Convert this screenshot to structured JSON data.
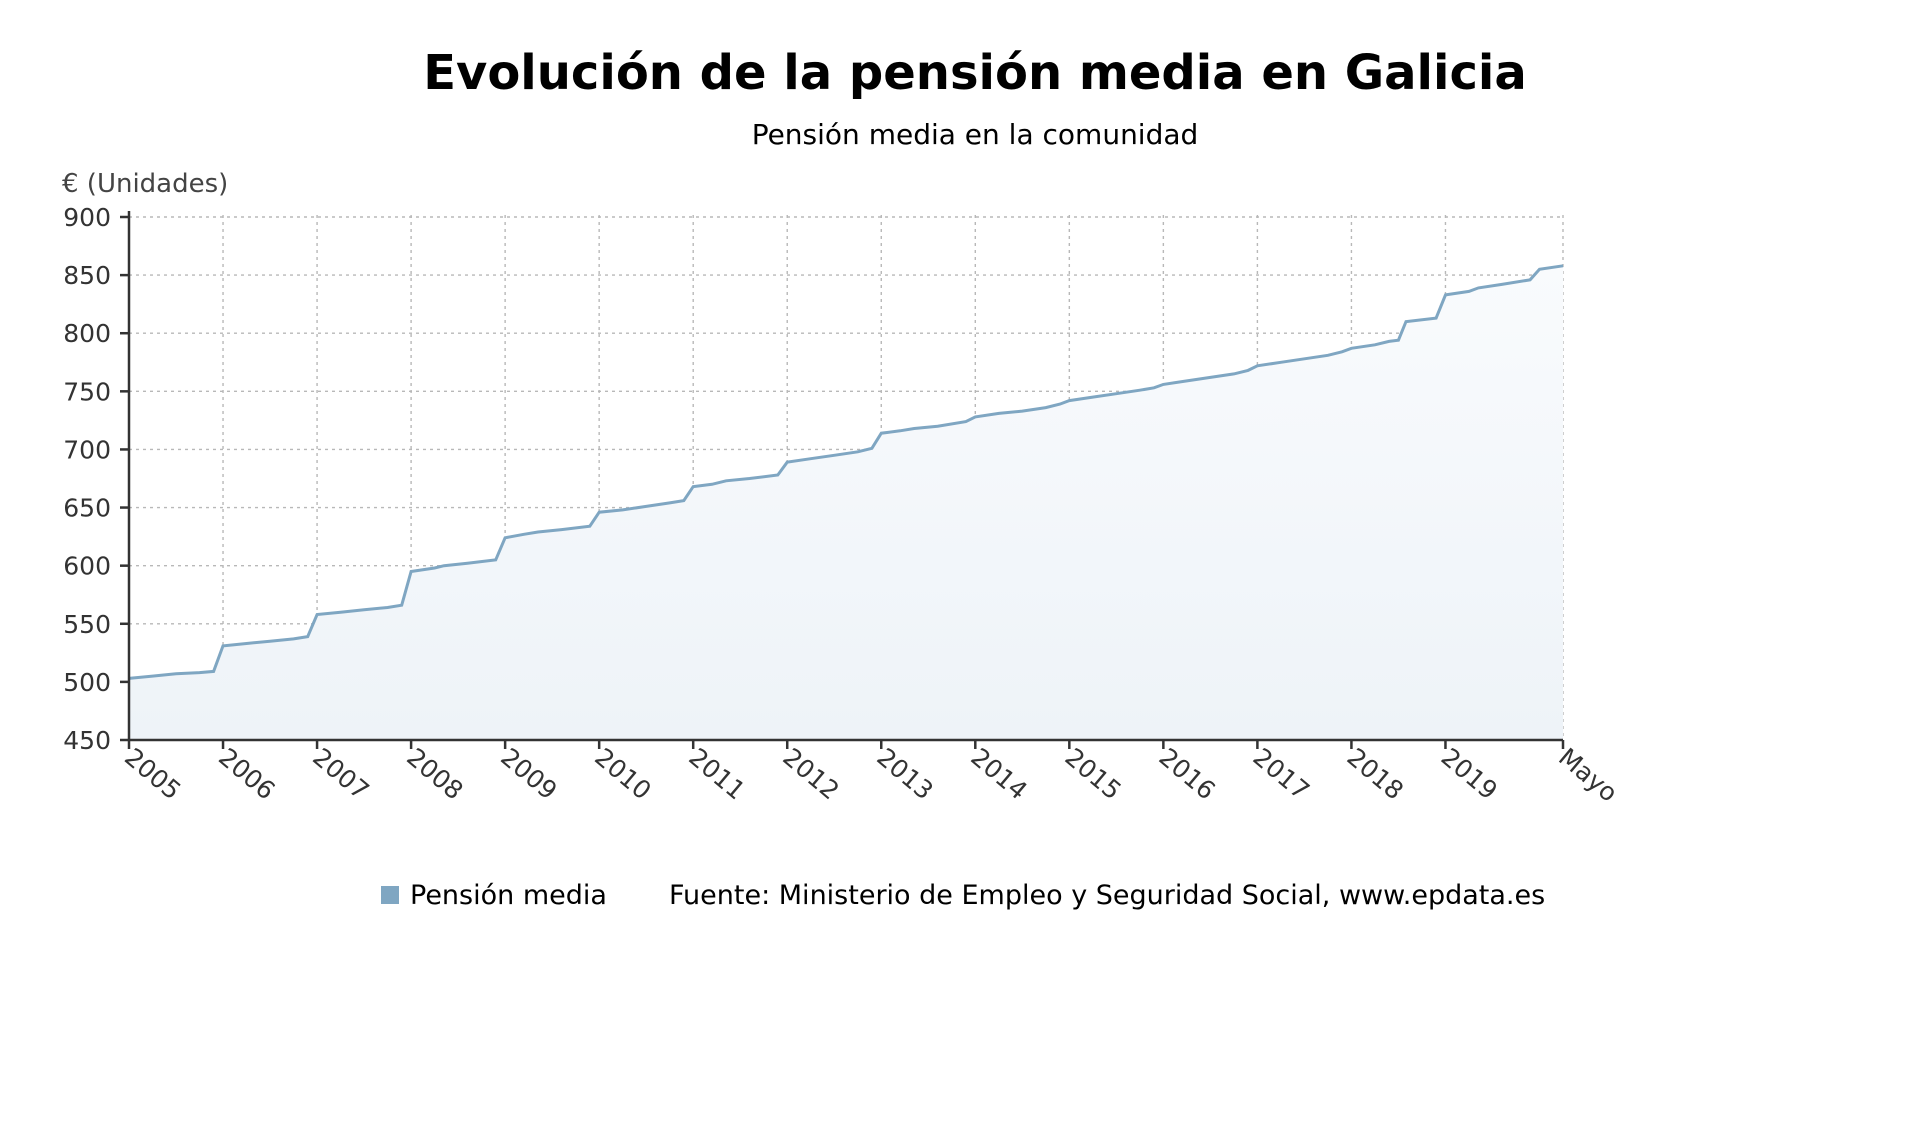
{
  "chart_data": {
    "type": "area",
    "title": "Evolución de la pensión media en Galicia",
    "subtitle": "Pensión media en la comunidad",
    "ylabel": "€ (Unidades)",
    "xlabel": "",
    "ylim": [
      450,
      900
    ],
    "yticks": [
      450,
      500,
      550,
      600,
      650,
      700,
      750,
      800,
      850,
      900
    ],
    "x_tick_labels": [
      "2005",
      "2006",
      "2007",
      "2008",
      "2009",
      "2010",
      "2011",
      "2012",
      "2013",
      "2014",
      "2015",
      "2016",
      "2017",
      "2018",
      "2019",
      "Mayo"
    ],
    "grid": true,
    "legend_position": "bottom",
    "colors": {
      "line": "#7fa6c2",
      "fill_top": "#f9fbfd",
      "fill_bottom": "#eef3f8",
      "legend_swatch": "#7fa6c2"
    },
    "series": [
      {
        "name": "Pensión media",
        "points": [
          [
            2005.0,
            503
          ],
          [
            2005.25,
            505
          ],
          [
            2005.5,
            507
          ],
          [
            2005.75,
            508
          ],
          [
            2005.9,
            509
          ],
          [
            2006.0,
            531
          ],
          [
            2006.25,
            533
          ],
          [
            2006.5,
            535
          ],
          [
            2006.75,
            537
          ],
          [
            2006.9,
            539
          ],
          [
            2007.0,
            558
          ],
          [
            2007.25,
            560
          ],
          [
            2007.5,
            562
          ],
          [
            2007.75,
            564
          ],
          [
            2007.9,
            566
          ],
          [
            2008.0,
            595
          ],
          [
            2008.25,
            598
          ],
          [
            2008.35,
            600
          ],
          [
            2008.6,
            602
          ],
          [
            2008.9,
            605
          ],
          [
            2009.0,
            624
          ],
          [
            2009.2,
            627
          ],
          [
            2009.35,
            629
          ],
          [
            2009.6,
            631
          ],
          [
            2009.9,
            634
          ],
          [
            2010.0,
            646
          ],
          [
            2010.25,
            648
          ],
          [
            2010.5,
            651
          ],
          [
            2010.75,
            654
          ],
          [
            2010.9,
            656
          ],
          [
            2011.0,
            668
          ],
          [
            2011.2,
            670
          ],
          [
            2011.35,
            673
          ],
          [
            2011.6,
            675
          ],
          [
            2011.9,
            678
          ],
          [
            2012.0,
            689
          ],
          [
            2012.25,
            692
          ],
          [
            2012.5,
            695
          ],
          [
            2012.75,
            698
          ],
          [
            2012.9,
            701
          ],
          [
            2013.0,
            714
          ],
          [
            2013.2,
            716
          ],
          [
            2013.35,
            718
          ],
          [
            2013.6,
            720
          ],
          [
            2013.9,
            724
          ],
          [
            2014.0,
            728
          ],
          [
            2014.25,
            731
          ],
          [
            2014.5,
            733
          ],
          [
            2014.75,
            736
          ],
          [
            2014.9,
            739
          ],
          [
            2015.0,
            742
          ],
          [
            2015.25,
            745
          ],
          [
            2015.5,
            748
          ],
          [
            2015.75,
            751
          ],
          [
            2015.9,
            753
          ],
          [
            2016.0,
            756
          ],
          [
            2016.25,
            759
          ],
          [
            2016.5,
            762
          ],
          [
            2016.75,
            765
          ],
          [
            2016.9,
            768
          ],
          [
            2017.0,
            772
          ],
          [
            2017.25,
            775
          ],
          [
            2017.5,
            778
          ],
          [
            2017.75,
            781
          ],
          [
            2017.9,
            784
          ],
          [
            2018.0,
            787
          ],
          [
            2018.25,
            790
          ],
          [
            2018.4,
            793
          ],
          [
            2018.5,
            794
          ],
          [
            2018.58,
            810
          ],
          [
            2018.9,
            813
          ],
          [
            2019.0,
            833
          ],
          [
            2019.25,
            836
          ],
          [
            2019.35,
            839
          ],
          [
            2019.6,
            842
          ],
          [
            2019.9,
            846
          ],
          [
            2020.0,
            855
          ],
          [
            2020.25,
            858
          ]
        ]
      }
    ],
    "source": "Fuente: Ministerio de Empleo y Seguridad Social, www.epdata.es"
  }
}
